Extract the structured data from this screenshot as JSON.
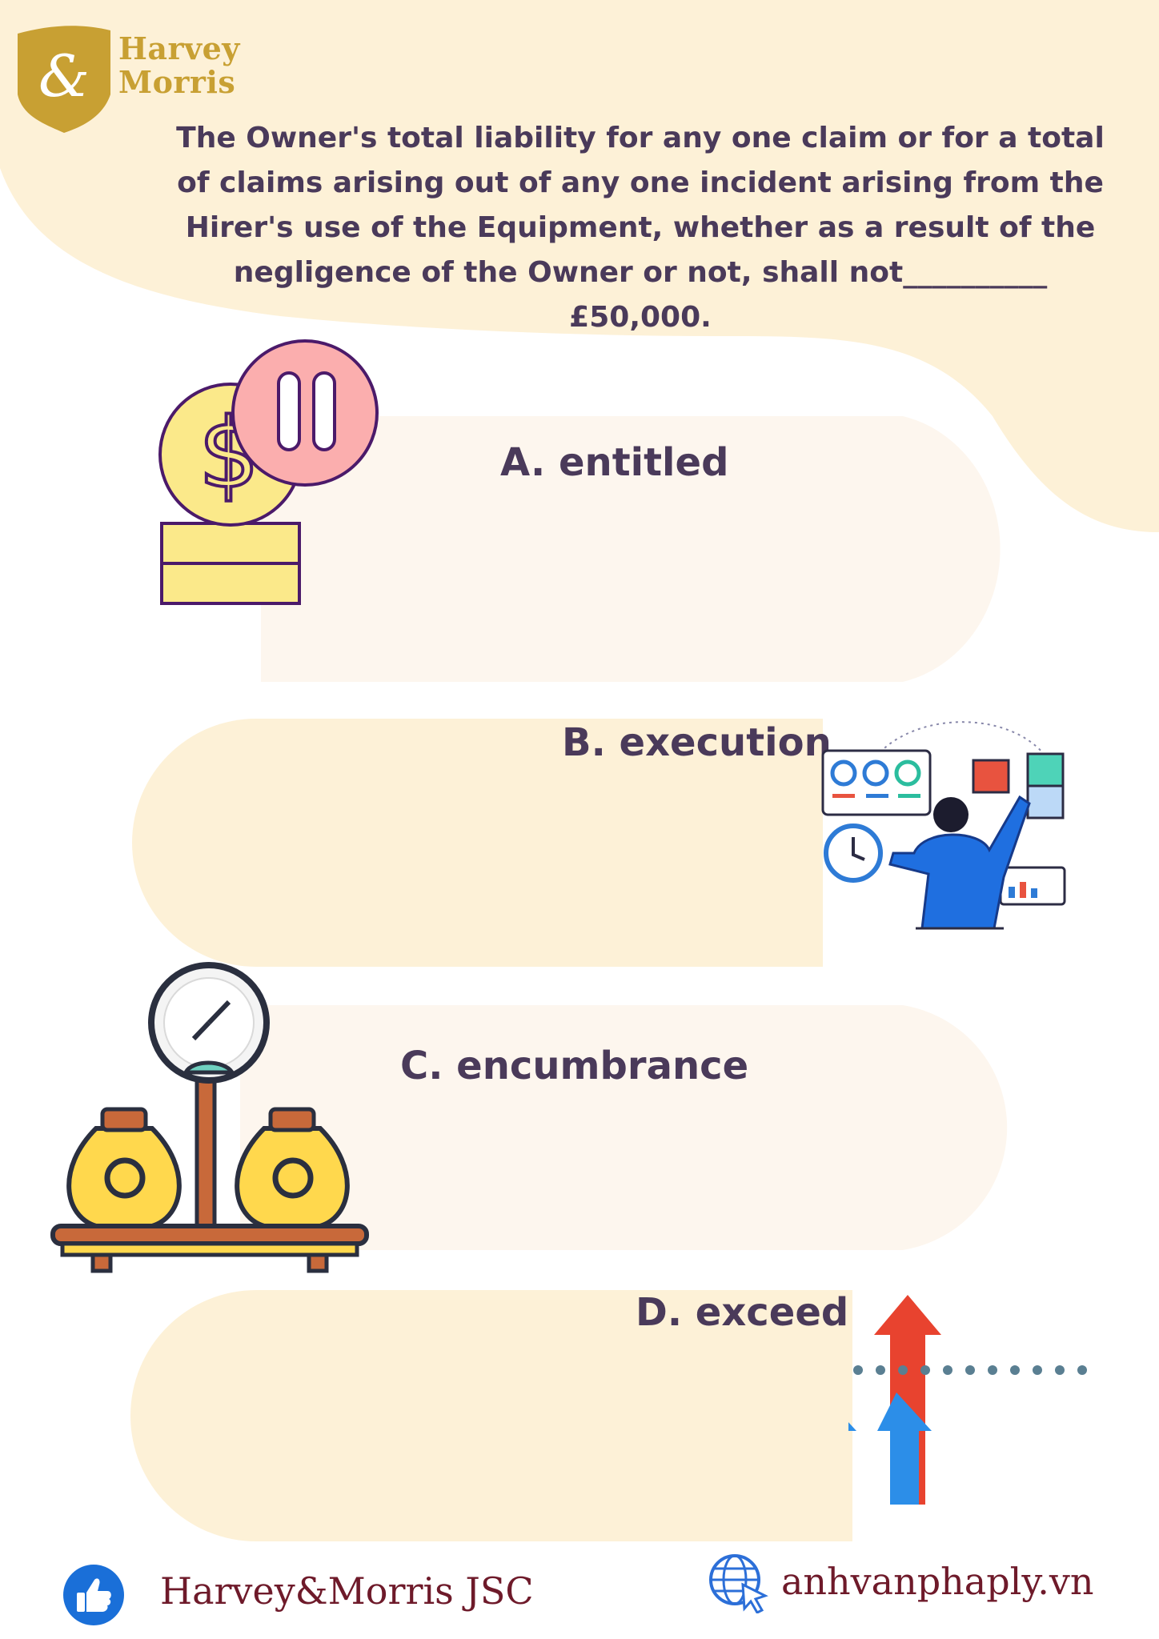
{
  "brand": {
    "line1": "Harvey",
    "line2": "Morris",
    "emblem": "&"
  },
  "question": "The Owner's total liability for any one claim or for a total of claims arising out of any one incident arising from the Hirer's use of the Equipment, whether as a result of the negligence of the Owner or not, shall not__________ £50,000.",
  "options": [
    {
      "label": "A. entitled",
      "icon": "coins-icon"
    },
    {
      "label": "B. execution",
      "icon": "business-person-illustration"
    },
    {
      "label": "C. encumbrance",
      "icon": "balance-scale-icon"
    },
    {
      "label": "D. exceed",
      "icon": "growth-arrows-icon"
    }
  ],
  "footer": {
    "company": "Harvey&Morris JSC",
    "website": "anhvanphaply.vn",
    "left_icon": "thumbs-up-icon",
    "right_icon": "globe-icon"
  },
  "colors": {
    "background_shape": "#fdf1d7",
    "card": "#fdf6ee",
    "card_alt": "#fdf1d7",
    "text": "#4a3a5a",
    "brand_gold": "#c8a033",
    "footer_text": "#6e1a2a"
  }
}
